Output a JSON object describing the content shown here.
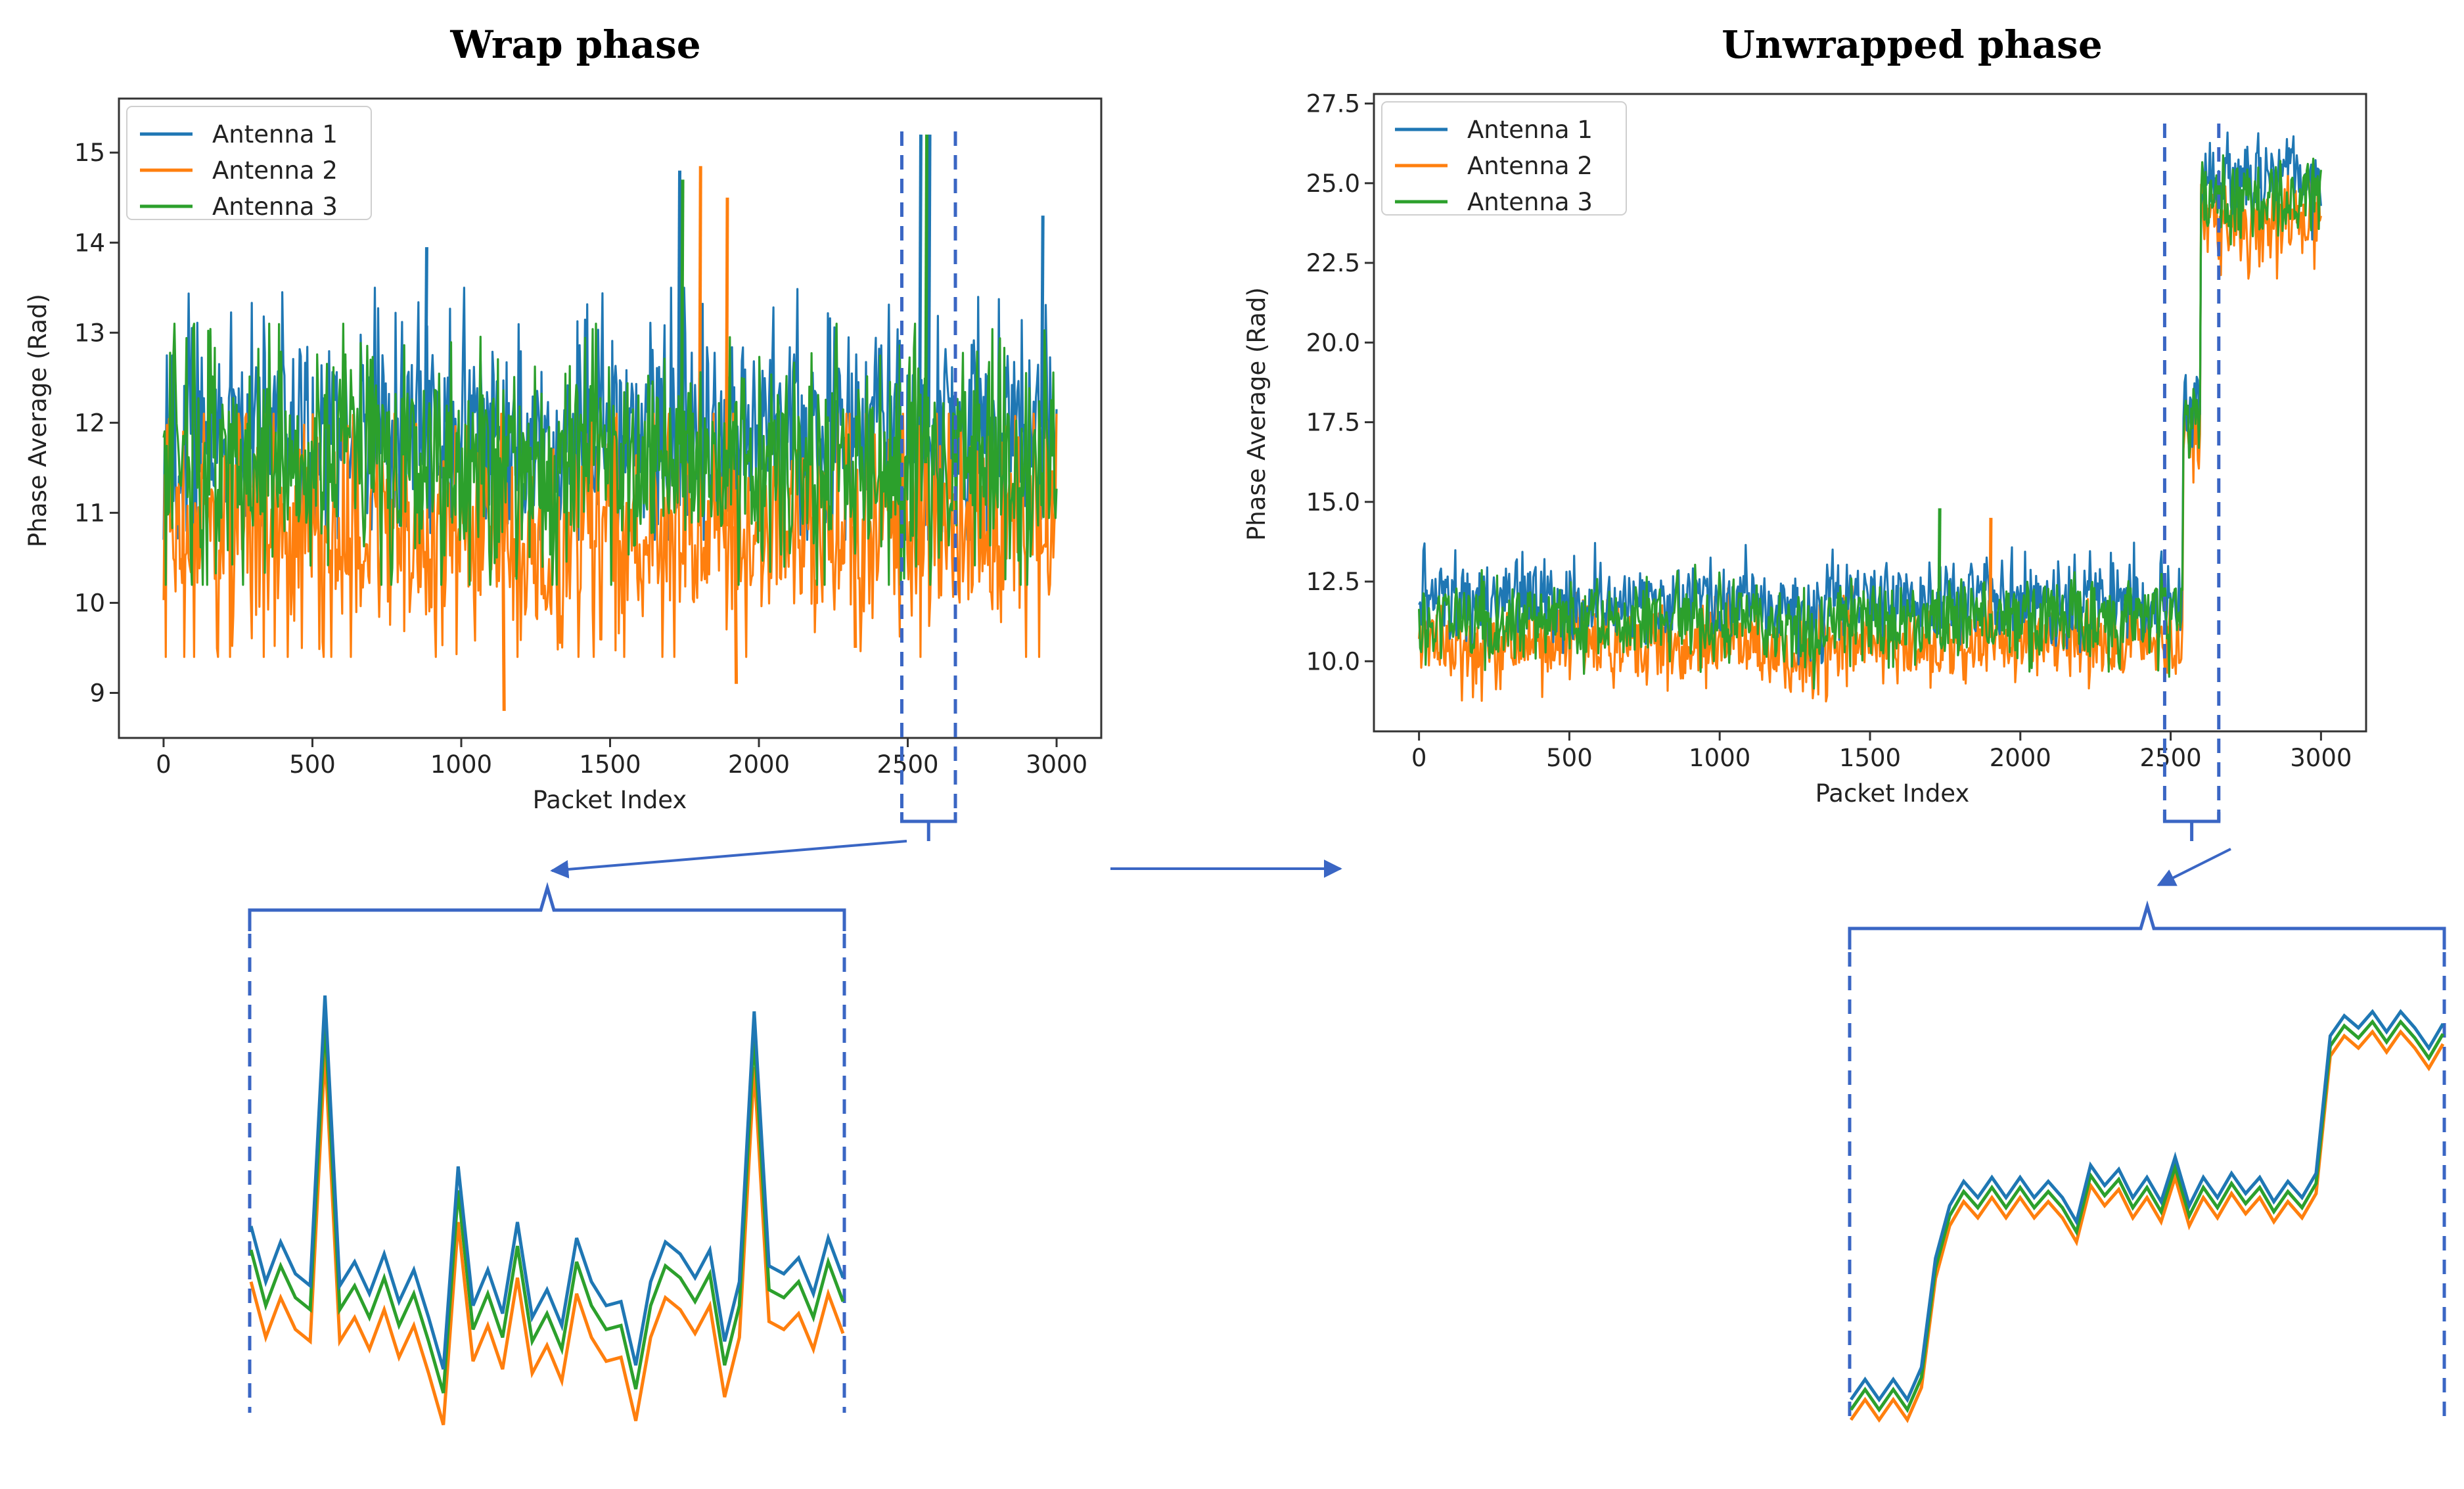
{
  "colors": {
    "antenna_1": "#1f77b4",
    "antenna_2": "#ff7f0e",
    "antenna_3": "#2ca02c",
    "annotation": "#3a66c4"
  },
  "chart_data": [
    {
      "type": "line",
      "title": "Wrap phase",
      "xlabel": "Packet Index",
      "ylabel": "Phase Average (Rad)",
      "xlim": [
        -150,
        3150
      ],
      "ylim": [
        8.5,
        15.6
      ],
      "xticks": [
        "0",
        "500",
        "1000",
        "1500",
        "2000",
        "2500",
        "3000"
      ],
      "yticks": [
        "9",
        "10",
        "11",
        "12",
        "13",
        "14",
        "15"
      ],
      "legend": [
        "Antenna 1",
        "Antenna 2",
        "Antenna 3"
      ],
      "legend_position": "upper-left",
      "series": [
        {
          "name": "Antenna 1",
          "center": 11.95,
          "noise_low": 10.9,
          "noise_high": 13.3,
          "spikes": [
            [
              880,
              13.95
            ],
            [
              1730,
              14.8
            ],
            [
              2540,
              15.2
            ],
            [
              2570,
              15.2
            ],
            [
              2950,
              14.3
            ]
          ]
        },
        {
          "name": "Antenna 2",
          "center": 10.85,
          "noise_low": 9.6,
          "noise_high": 11.9,
          "spikes": [
            [
              1140,
              8.8
            ],
            [
              1800,
              14.85
            ],
            [
              1890,
              14.5
            ],
            [
              1920,
              9.1
            ],
            [
              2320,
              9.5
            ]
          ]
        },
        {
          "name": "Antenna 3",
          "center": 11.55,
          "noise_low": 10.4,
          "noise_high": 12.9,
          "spikes": [
            [
              1740,
              14.7
            ],
            [
              2560,
              15.2
            ]
          ]
        }
      ],
      "zoom_window": [
        2480,
        2660
      ]
    },
    {
      "type": "line",
      "title": "Unwrapped phase",
      "xlabel": "Packet Index",
      "ylabel": "Phase Average (Rad)",
      "xlim": [
        -150,
        3150
      ],
      "ylim": [
        7.8,
        27.8
      ],
      "xticks": [
        "0",
        "500",
        "1000",
        "1500",
        "2000",
        "2500",
        "3000"
      ],
      "yticks": [
        "10.0",
        "12.5",
        "15.0",
        "17.5",
        "20.0",
        "22.5",
        "25.0",
        "27.5"
      ],
      "legend": [
        "Antenna 1",
        "Antenna 2",
        "Antenna 3"
      ],
      "legend_position": "upper-left",
      "series": [
        {
          "name": "Antenna 1",
          "segments": [
            [
              0,
              2540,
              11.9
            ],
            [
              2540,
              2600,
              18.0
            ],
            [
              2600,
              3000,
              25.2
            ]
          ]
        },
        {
          "name": "Antenna 2",
          "segments": [
            [
              0,
              2540,
              10.6
            ],
            [
              2540,
              2600,
              17.0
            ],
            [
              2600,
              3000,
              23.8
            ]
          ]
        },
        {
          "name": "Antenna 3",
          "segments": [
            [
              0,
              2540,
              11.3
            ],
            [
              2540,
              2600,
              17.5
            ],
            [
              2600,
              3000,
              24.5
            ]
          ]
        }
      ],
      "zoom_window": [
        2480,
        2660
      ]
    }
  ],
  "zoom_insets": [
    {
      "name": "wrap-zoom",
      "values": {
        "Antenna 1": [
          0.42,
          0.28,
          0.38,
          0.3,
          0.27,
          1.0,
          0.27,
          0.33,
          0.25,
          0.35,
          0.23,
          0.31,
          0.19,
          0.06,
          0.57,
          0.22,
          0.31,
          0.2,
          0.43,
          0.19,
          0.26,
          0.17,
          0.39,
          0.28,
          0.22,
          0.23,
          0.07,
          0.28,
          0.38,
          0.35,
          0.29,
          0.36,
          0.13,
          0.28,
          0.96,
          0.32,
          0.3,
          0.34,
          0.25,
          0.39,
          0.29
        ],
        "offset_antenna_2": -0.14,
        "offset_antenna_3": -0.06
      }
    },
    {
      "name": "unwrap-zoom",
      "values": {
        "Antenna 1": [
          0.0,
          0.05,
          0.0,
          0.05,
          0.0,
          0.08,
          0.35,
          0.48,
          0.54,
          0.5,
          0.55,
          0.5,
          0.55,
          0.5,
          0.54,
          0.5,
          0.44,
          0.58,
          0.53,
          0.57,
          0.5,
          0.55,
          0.49,
          0.6,
          0.48,
          0.55,
          0.5,
          0.56,
          0.51,
          0.55,
          0.49,
          0.54,
          0.5,
          0.56,
          0.9,
          0.95,
          0.92,
          0.96,
          0.91,
          0.96,
          0.92,
          0.87,
          0.93
        ],
        "offset_antenna_2": -0.05,
        "offset_antenna_3": -0.025
      }
    }
  ]
}
